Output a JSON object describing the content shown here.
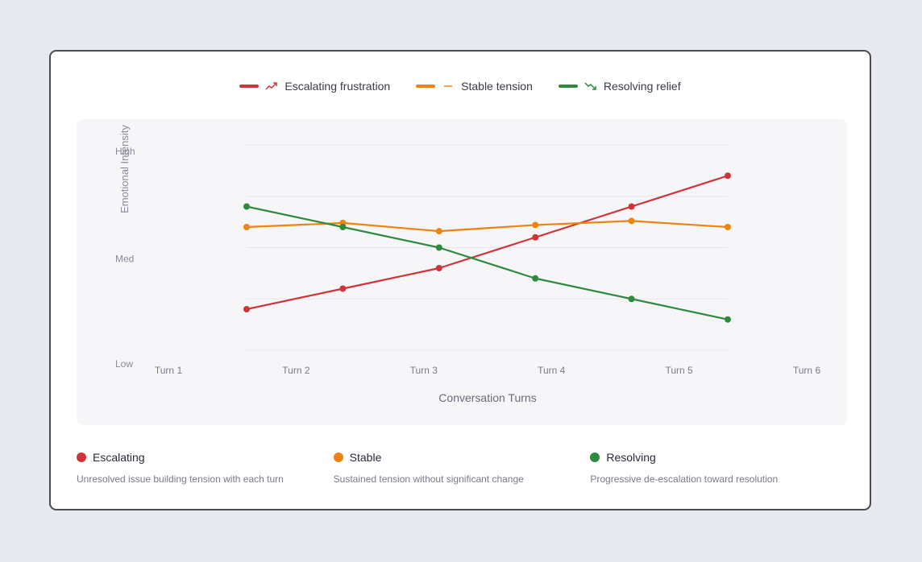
{
  "chart_data": {
    "type": "line",
    "categories": [
      "Turn 1",
      "Turn 2",
      "Turn 3",
      "Turn 4",
      "Turn 5",
      "Turn 6"
    ],
    "xlabel": "Conversation Turns",
    "ylabel": "Emotional Intensity",
    "y_tick_labels": [
      "Low",
      "Med",
      "High"
    ],
    "ylim": [
      0,
      10
    ],
    "series": [
      {
        "name": "Escalating frustration",
        "color": "#d13438",
        "icon": "trend-up-icon",
        "values": [
          2.0,
          3.0,
          4.0,
          5.5,
          7.0,
          8.5
        ]
      },
      {
        "name": "Stable tension",
        "color": "#f0820f",
        "icon": "flat-line-icon",
        "values": [
          6.0,
          6.2,
          5.8,
          6.1,
          6.3,
          6.0
        ]
      },
      {
        "name": "Resolving relief",
        "color": "#2e8b3e",
        "icon": "trend-down-icon",
        "values": [
          7.0,
          6.0,
          5.0,
          3.5,
          2.5,
          1.5
        ]
      }
    ]
  },
  "legend": [
    {
      "label": "Escalating frustration",
      "color": "#d13438"
    },
    {
      "label": "Stable tension",
      "color": "#f0820f"
    },
    {
      "label": "Resolving relief",
      "color": "#2e8b3e"
    }
  ],
  "footer": [
    {
      "title": "Escalating",
      "desc": "Unresolved issue building tension with each turn",
      "color": "#d13438"
    },
    {
      "title": "Stable",
      "desc": "Sustained tension without significant change",
      "color": "#f0820f"
    },
    {
      "title": "Resolving",
      "desc": "Progressive de-escalation toward resolution",
      "color": "#2e8b3e"
    }
  ]
}
